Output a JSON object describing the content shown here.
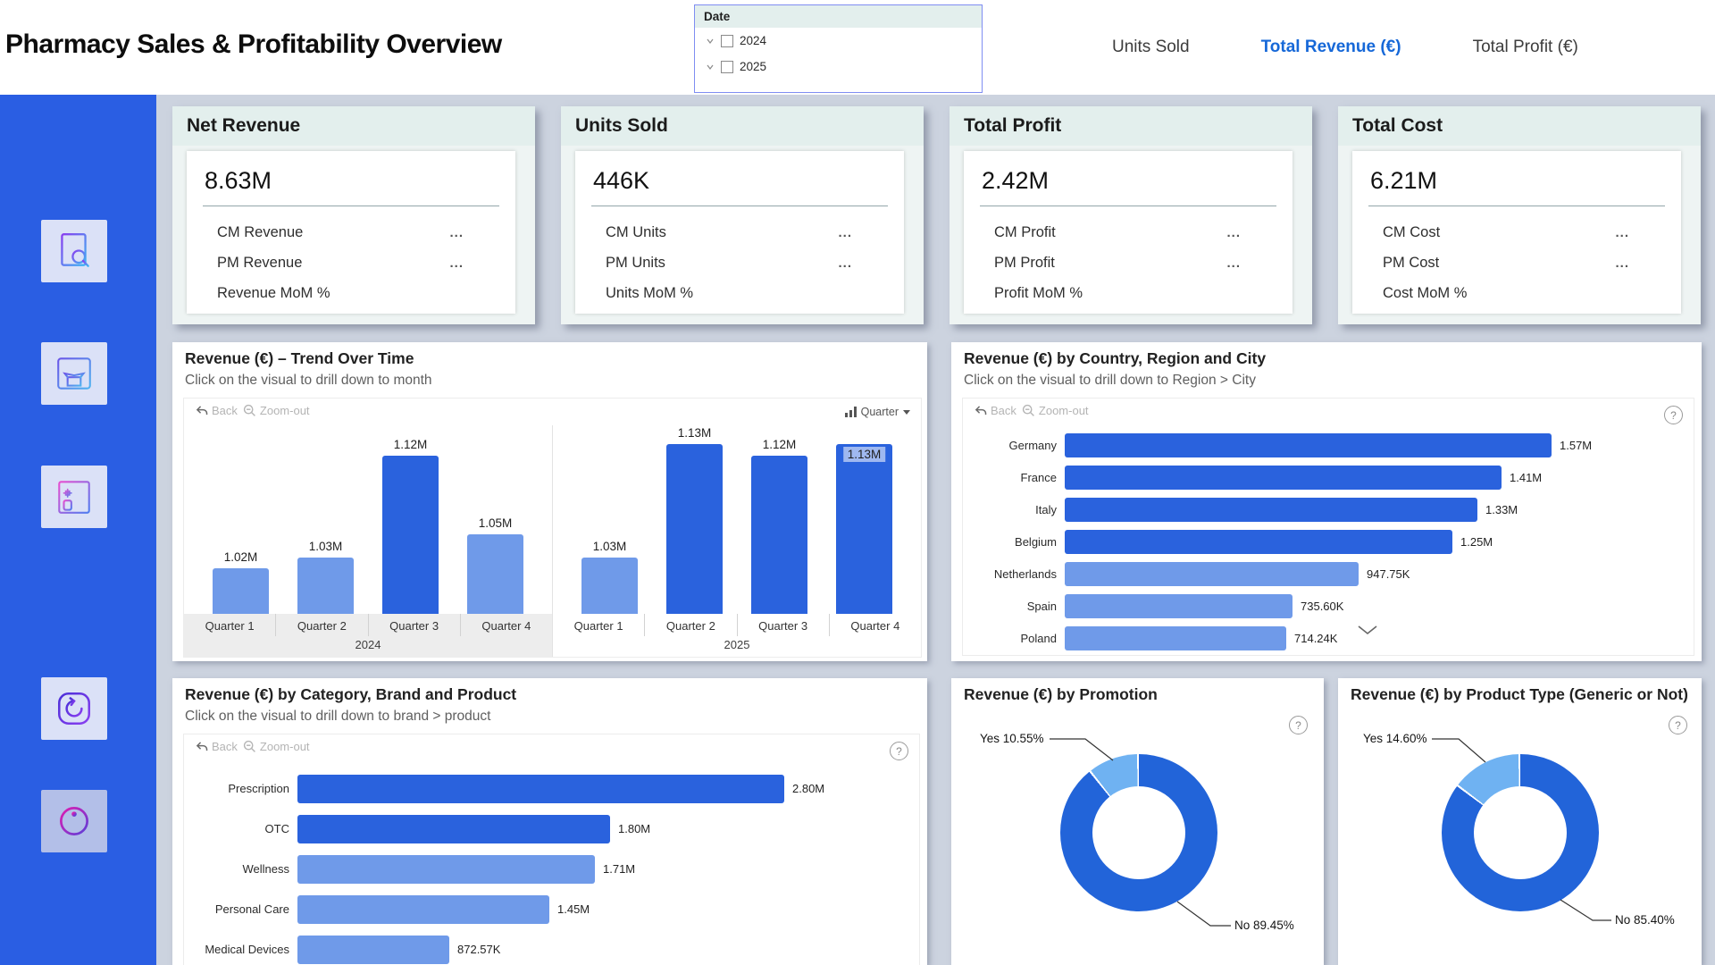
{
  "header": {
    "title": "Pharmacy Sales & Profitability Overview",
    "tabs": [
      {
        "label": "Units Sold",
        "active": false
      },
      {
        "label": "Total Revenue (€)",
        "active": true
      },
      {
        "label": "Total Profit (€)",
        "active": false
      }
    ],
    "date_slicer": {
      "title": "Date",
      "options": [
        {
          "label": "2024",
          "checked": false
        },
        {
          "label": "2025",
          "checked": false
        }
      ]
    }
  },
  "sidebar": {
    "icons": [
      "report-search",
      "product-box",
      "medical-report",
      "refresh",
      "info"
    ]
  },
  "kpi_cards": [
    {
      "title": "Net Revenue",
      "value": "8.63M",
      "rows": [
        {
          "label": "CM Revenue",
          "menu": "..."
        },
        {
          "label": "PM Revenue",
          "menu": "..."
        },
        {
          "label": "Revenue MoM %",
          "menu": ""
        }
      ]
    },
    {
      "title": "Units Sold",
      "value": "446K",
      "rows": [
        {
          "label": "CM Units",
          "menu": "..."
        },
        {
          "label": "PM Units",
          "menu": "..."
        },
        {
          "label": "Units MoM %",
          "menu": ""
        }
      ]
    },
    {
      "title": "Total Profit",
      "value": "2.42M",
      "rows": [
        {
          "label": "CM Profit",
          "menu": "..."
        },
        {
          "label": "PM Profit",
          "menu": "..."
        },
        {
          "label": "Profit MoM %",
          "menu": ""
        }
      ]
    },
    {
      "title": "Total Cost",
      "value": "6.21M",
      "rows": [
        {
          "label": "CM Cost",
          "menu": "..."
        },
        {
          "label": "PM Cost",
          "menu": "..."
        },
        {
          "label": "Cost MoM %",
          "menu": ""
        }
      ]
    }
  ],
  "toolbar": {
    "back_label": "Back",
    "zoomout_label": "Zoom-out"
  },
  "trend_controls": {
    "field_label": "Quarter"
  },
  "icons": {
    "help": "?"
  },
  "chart_data": [
    {
      "id": "trend",
      "type": "bar",
      "title": "Revenue (€) – Trend Over Time",
      "subtitle": "Click on the visual to drill down to month",
      "ylabel": "Revenue (€)",
      "ylim": [
        0.98,
        1.152
      ],
      "unit": "M",
      "legend_position": "none",
      "grid": false,
      "groups": [
        {
          "year": "2024",
          "bars": [
            {
              "label": "Quarter 1",
              "value": 1.02,
              "display": "1.02M",
              "shade": "light"
            },
            {
              "label": "Quarter 2",
              "value": 1.03,
              "display": "1.03M",
              "shade": "light"
            },
            {
              "label": "Quarter 3",
              "value": 1.12,
              "display": "1.12M",
              "shade": "dark"
            },
            {
              "label": "Quarter 4",
              "value": 1.05,
              "display": "1.05M",
              "shade": "light"
            }
          ]
        },
        {
          "year": "2025",
          "bars": [
            {
              "label": "Quarter 1",
              "value": 1.03,
              "display": "1.03M",
              "shade": "light"
            },
            {
              "label": "Quarter 2",
              "value": 1.13,
              "display": "1.13M",
              "shade": "dark"
            },
            {
              "label": "Quarter 3",
              "value": 1.12,
              "display": "1.12M",
              "shade": "dark"
            },
            {
              "label": "Quarter 4",
              "value": 1.13,
              "display": "1.13M",
              "shade": "dark",
              "label_overlap": true
            }
          ]
        }
      ]
    },
    {
      "id": "country",
      "type": "bar",
      "title": "Revenue (€) by Country, Region and City",
      "subtitle": "Click on the visual to drill down to Region > City",
      "orientation": "horizontal",
      "xlim": [
        0,
        1.6
      ],
      "unit": "M",
      "items": [
        {
          "label": "Germany",
          "value": 1.57,
          "display": "1.57M",
          "shade": "dark"
        },
        {
          "label": "France",
          "value": 1.41,
          "display": "1.41M",
          "shade": "dark"
        },
        {
          "label": "Italy",
          "value": 1.33,
          "display": "1.33M",
          "shade": "dark"
        },
        {
          "label": "Belgium",
          "value": 1.25,
          "display": "1.25M",
          "shade": "dark"
        },
        {
          "label": "Netherlands",
          "value": 0.94775,
          "display": "947.75K",
          "shade": "light"
        },
        {
          "label": "Spain",
          "value": 0.7356,
          "display": "735.60K",
          "shade": "light"
        },
        {
          "label": "Poland",
          "value": 0.71424,
          "display": "714.24K",
          "shade": "light"
        }
      ],
      "scroll_indicator": true
    },
    {
      "id": "category",
      "type": "bar",
      "title": "Revenue (€) by Category, Brand and Product",
      "subtitle": "Click on the visual to drill down to brand > product",
      "orientation": "horizontal",
      "xlim": [
        0,
        2.9
      ],
      "unit": "M",
      "items": [
        {
          "label": "Prescription",
          "value": 2.8,
          "display": "2.80M",
          "shade": "dark"
        },
        {
          "label": "OTC",
          "value": 1.8,
          "display": "1.80M",
          "shade": "dark"
        },
        {
          "label": "Wellness",
          "value": 1.71,
          "display": "1.71M",
          "shade": "light"
        },
        {
          "label": "Personal Care",
          "value": 1.45,
          "display": "1.45M",
          "shade": "light"
        },
        {
          "label": "Medical Devices",
          "value": 0.87257,
          "display": "872.57K",
          "shade": "light"
        }
      ]
    },
    {
      "id": "promotion",
      "type": "pie",
      "title": "Revenue (€) by Promotion",
      "slices": [
        {
          "label": "No",
          "pct": 89.45,
          "display": "No 89.45%",
          "shade": "dark"
        },
        {
          "label": "Yes",
          "pct": 10.55,
          "display": "Yes 10.55%",
          "shade": "light"
        }
      ]
    },
    {
      "id": "product_type",
      "type": "pie",
      "title": "Revenue (€) by Product Type (Generic or Not)",
      "slices": [
        {
          "label": "No",
          "pct": 85.4,
          "display": "No 85.40%",
          "shade": "dark"
        },
        {
          "label": "Yes",
          "pct": 14.6,
          "display": "Yes 14.60%",
          "shade": "light"
        }
      ]
    }
  ],
  "colors": {
    "bar_dark": "#2a62dd",
    "bar_light": "#6f9ae9",
    "donut_dark": "#2264d9",
    "donut_light": "#6fb2f2",
    "accent_tab": "#1668d8",
    "sidebar": "#2a5ee3",
    "background": "#ccd3df"
  }
}
